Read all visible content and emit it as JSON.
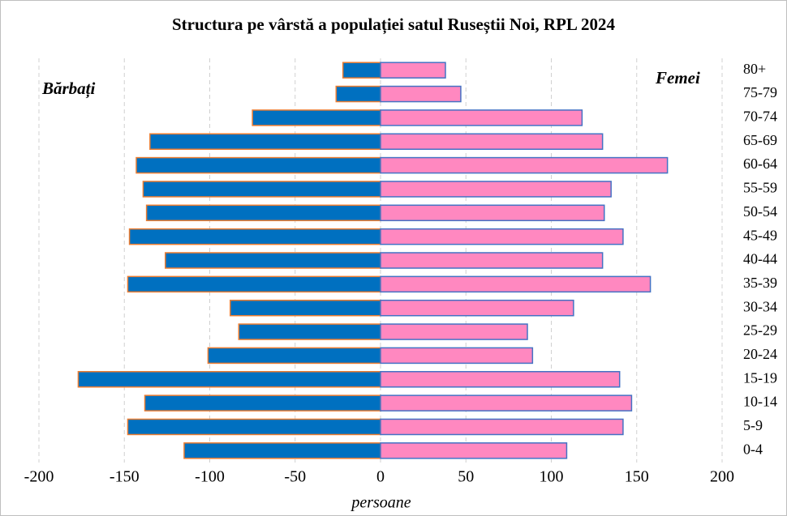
{
  "chart_data": {
    "type": "bar",
    "orientation": "horizontal",
    "stacked": false,
    "title": "Structura  pe vârstă  a populației  satul Ruseștii Noi, RPL 2024",
    "x_label": "persoane",
    "categories": [
      "0-4",
      "5-9",
      "10-14",
      "15-19",
      "20-24",
      "25-29",
      "30-34",
      "35-39",
      "40-44",
      "45-49",
      "50-54",
      "55-59",
      "60-64",
      "65-69",
      "70-74",
      "75-79",
      "80+"
    ],
    "series": [
      {
        "name": "Bărbați",
        "color": "#0070c0",
        "edge_color": "#ed7d31",
        "values": [
          -115,
          -148,
          -138,
          -177,
          -101,
          -83,
          -88,
          -148,
          -126,
          -147,
          -137,
          -139,
          -143,
          -135,
          -75,
          -26,
          -22
        ]
      },
      {
        "name": "Femei",
        "color": "#ff88c0",
        "edge_color": "#4472c4",
        "values": [
          109,
          142,
          147,
          140,
          89,
          86,
          113,
          158,
          130,
          142,
          131,
          135,
          168,
          130,
          118,
          47,
          38
        ]
      }
    ],
    "xlim": [
      -200,
      200
    ],
    "xticks": [
      -200,
      -150,
      -100,
      -50,
      0,
      50,
      100,
      150,
      200
    ],
    "grid": true
  }
}
